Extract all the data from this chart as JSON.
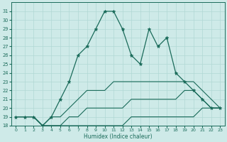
{
  "xlabel": "Humidex (Indice chaleur)",
  "x": [
    0,
    1,
    2,
    3,
    4,
    5,
    6,
    7,
    8,
    9,
    10,
    11,
    12,
    13,
    14,
    15,
    16,
    17,
    18,
    19,
    20,
    21,
    22,
    23
  ],
  "line1": [
    19,
    19,
    19,
    18,
    19,
    21,
    23,
    26,
    27,
    29,
    31,
    31,
    29,
    26,
    25,
    29,
    27,
    28,
    24,
    23,
    22,
    21,
    20,
    20
  ],
  "line2": [
    19,
    19,
    19,
    18,
    19,
    19,
    20,
    21,
    22,
    22,
    22,
    23,
    23,
    23,
    23,
    23,
    23,
    23,
    23,
    23,
    23,
    22,
    21,
    20
  ],
  "line3": [
    19,
    19,
    19,
    18,
    18,
    18,
    19,
    19,
    20,
    20,
    20,
    20,
    20,
    21,
    21,
    21,
    21,
    21,
    21,
    22,
    22,
    21,
    20,
    20
  ],
  "line4": [
    19,
    19,
    19,
    18,
    18,
    18,
    18,
    18,
    18,
    18,
    18,
    18,
    18,
    19,
    19,
    19,
    19,
    19,
    19,
    19,
    19,
    20,
    20,
    20
  ],
  "color": "#1a6b5a",
  "bg_color": "#ceeae8",
  "grid_color": "#b0d8d5",
  "ylim": [
    18,
    32
  ],
  "xlim": [
    -0.5,
    23.5
  ],
  "yticks": [
    18,
    19,
    20,
    21,
    22,
    23,
    24,
    25,
    26,
    27,
    28,
    29,
    30,
    31
  ],
  "xticks": [
    0,
    1,
    2,
    3,
    4,
    5,
    6,
    7,
    8,
    9,
    10,
    11,
    12,
    13,
    14,
    15,
    16,
    17,
    18,
    19,
    20,
    21,
    22,
    23
  ]
}
